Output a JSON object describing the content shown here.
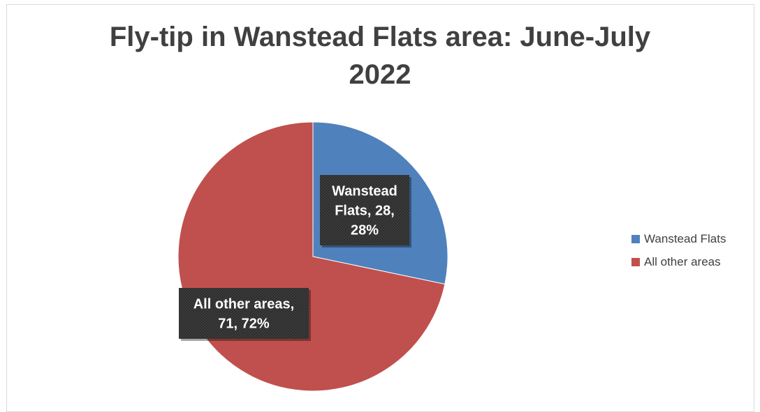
{
  "chart_data": {
    "type": "pie",
    "title": "Fly-tip in Wanstead Flats area: June-July 2022",
    "slices": [
      {
        "name": "Wanstead Flats",
        "value": 28,
        "percent": 28,
        "color": "#4f81bd",
        "label_lines": [
          "Wanstead",
          "Flats, 28,",
          "28%"
        ]
      },
      {
        "name": "All other areas",
        "value": 71,
        "percent": 72,
        "color": "#c0504d",
        "label_lines": [
          "All other areas,",
          "71, 72%"
        ]
      }
    ],
    "legend": {
      "position": "right",
      "items": [
        "Wanstead Flats",
        "All other areas"
      ]
    }
  }
}
